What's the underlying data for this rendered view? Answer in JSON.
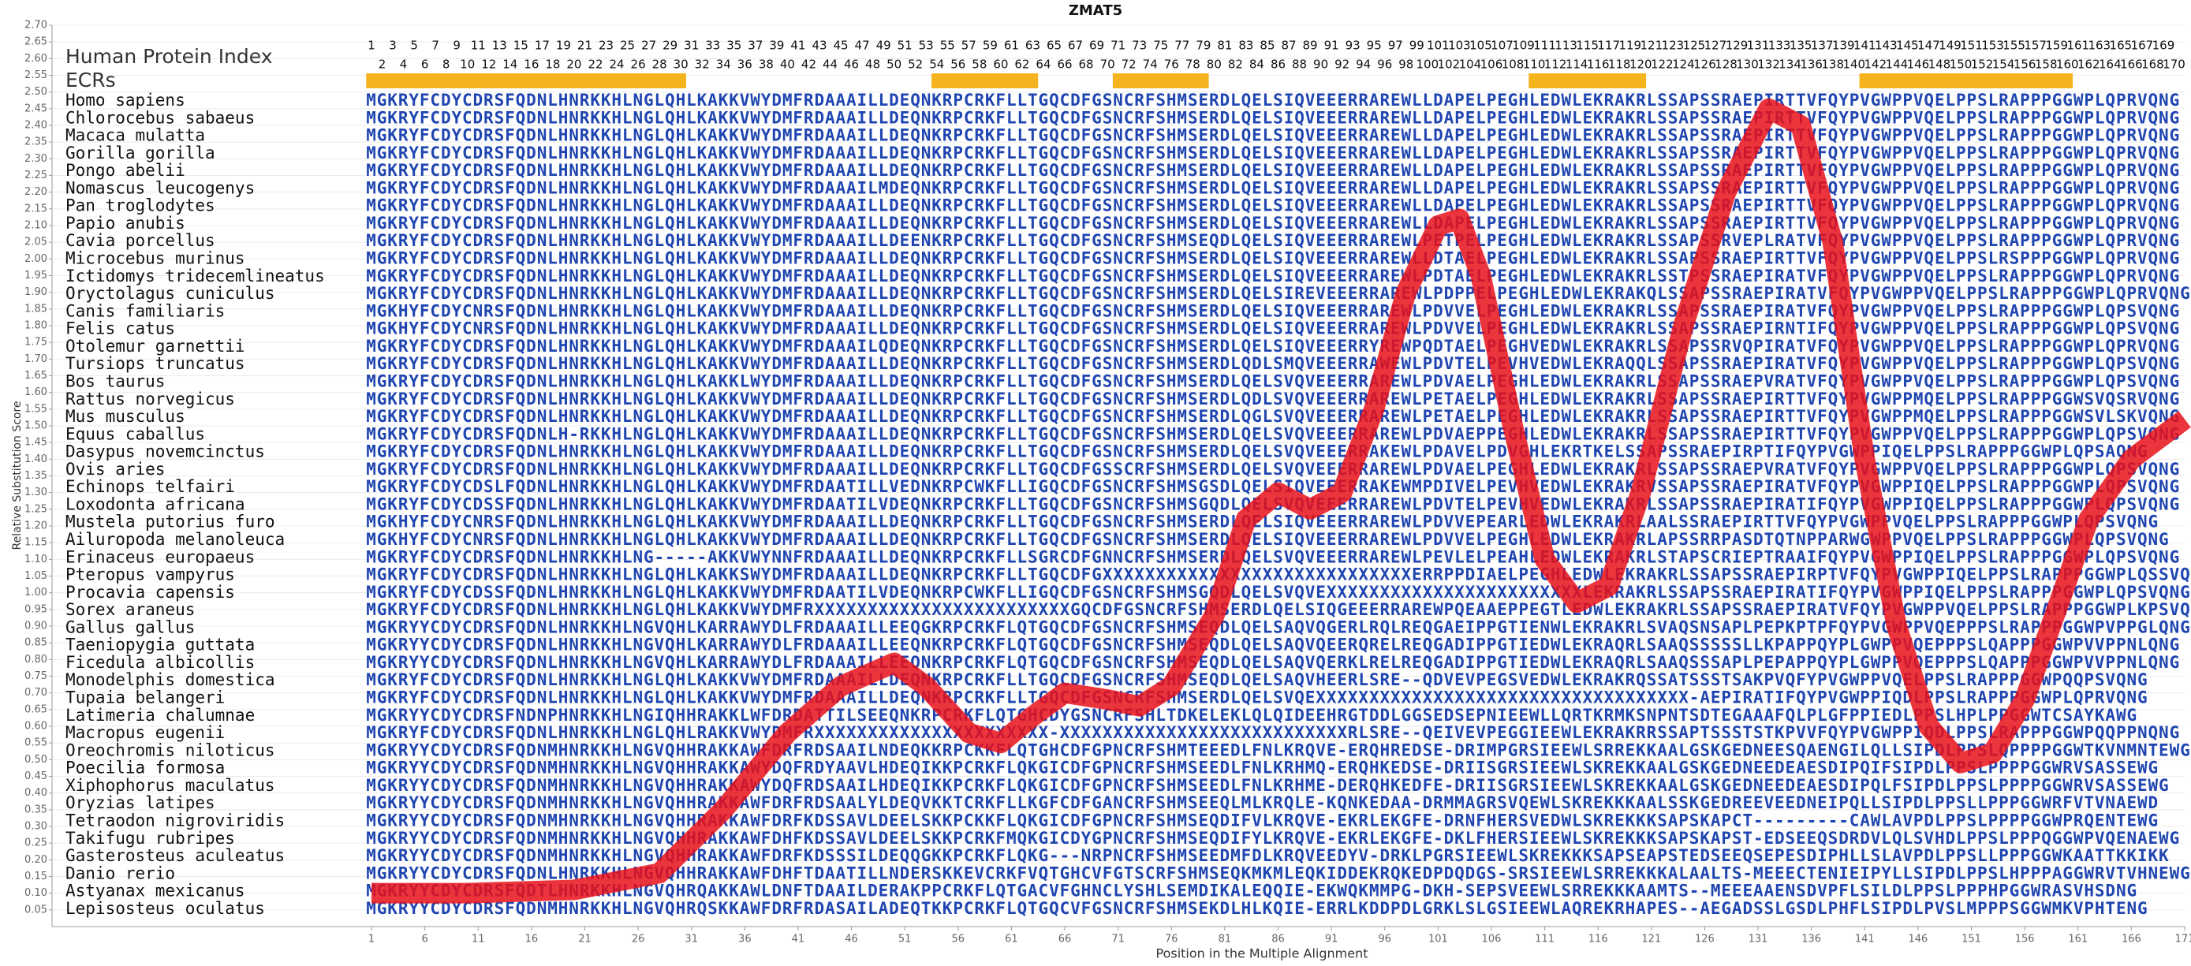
{
  "chart_data": {
    "type": "line",
    "title": "ZMAT5",
    "y_label": "Relative Substitution Score",
    "x_label": "Position in the Multiple Alignment",
    "header_label": "Human Protein Index",
    "ecr_label": "ECRs",
    "ecrs": [
      [
        1,
        30
      ],
      [
        54,
        63
      ],
      [
        71,
        79
      ],
      [
        110,
        120
      ],
      [
        141,
        160
      ]
    ],
    "index_numbers": [
      1,
      2,
      3,
      4,
      5,
      6,
      7,
      8,
      9,
      10,
      11,
      12,
      13,
      14,
      15,
      16,
      17,
      18,
      19,
      20,
      21,
      22,
      23,
      24,
      25,
      26,
      27,
      28,
      29,
      30,
      31,
      32,
      33,
      34,
      35,
      36,
      37,
      38,
      39,
      40,
      41,
      42,
      43,
      44,
      45,
      46,
      47,
      48,
      49,
      50,
      51,
      52,
      53,
      54,
      55,
      56,
      57,
      58,
      59,
      60,
      61,
      62,
      63,
      64,
      65,
      66,
      67,
      68,
      69,
      70,
      71,
      72,
      73,
      74,
      75,
      76,
      77,
      78,
      79,
      80,
      81,
      82,
      83,
      84,
      85,
      86,
      87,
      88,
      89,
      90,
      91,
      92,
      93,
      94,
      95,
      96,
      97,
      98,
      99,
      100,
      101,
      102,
      103,
      104,
      105,
      106,
      107,
      108,
      109,
      110,
      111,
      112,
      113,
      114,
      115,
      116,
      117,
      118,
      119,
      120,
      121,
      122,
      123,
      124,
      125,
      126,
      127,
      128,
      129,
      130,
      131,
      132,
      133,
      134,
      135,
      136,
      137,
      138,
      139,
      140,
      141,
      142,
      143,
      144,
      145,
      146,
      147,
      148,
      149,
      150,
      151,
      152,
      153,
      154,
      155,
      156,
      157,
      158,
      159,
      160,
      161,
      162,
      163,
      164,
      165,
      166,
      167,
      168,
      169,
      170
    ],
    "species": [
      {
        "name": "Homo sapiens",
        "sequence": "MGKRYFCDYCDRSFQDNLHNRKKHLNGLQHLKAKKVWYDMFRDAAAILLDEQNKRPCRKFLLTGQCDFGSNCRFSHMSERDLQELSIQVEEERRAREWLLDAPELPEGHLEDWLEKRAKRLSSAPSSRAEPIRTTVFQYPVGWPPVQELPPSLRAPPPGGWPLQPRVQNG"
      },
      {
        "name": "Chlorocebus sabaeus",
        "sequence": "MGKRYFCDYCDRSFQDNLHNRKKHLNGLQHLKAKKVWYDMFRDAAAILLDEQNKRPCRKFLLTGQCDFGSNCRFSHMSERDLQELSIQVEEERRAREWLLDAPELPEGHLEDWLEKRAKRLSSAPSSRAEPIRTTVFQYPVGWPPVQELPPSLRAPPPGGWPLQPRVQNG"
      },
      {
        "name": "Macaca mulatta",
        "sequence": "MGKRYFCDYCDRSFQDNLHNRKKHLNGLQHLKAKKVWYDMFRDAAAILLDEQNKRPCRKFLLTGQCDFGSNCRFSHMSERDLQELSIQVEEERRAREWLLDAPELPEGHLEDWLEKRAKRLSSAPSSRAEPIRTTVFQYPVGWPPVQELPPSLRAPPPGGWPLQPRVQNG"
      },
      {
        "name": "Gorilla gorilla",
        "sequence": "MGKRYFCDYCDRSFQDNLHNRKKHLNGLQHLKAKKVWYDMFRDAAAILLDEQNKRPCRKFLLTGQCDFGSNCRFSHMSERDLQELSIQVEEERRAREWLLDAPELPEGHLEDWLEKRAKRLSSAPSSRAEPIRTTVFQYPVGWPPVQELPPSLRAPPPGGWPLQPRVQNG"
      },
      {
        "name": "Pongo abelii",
        "sequence": "MGKRYFCDYCDRSFQDNLHNRKKHLNGLQHLKAKKVWYDMFRDAAAILLDEQNKRPCRKFLLTGQCDFGSNCRFSHMSERDLQELSIQVEEERRAREWLLDAPELPEGHLEDWLEKRAKRLSSAPSSRAEPIRTTVFQYPVGWPPVQELPPSLRAPPPGGWPLQPRVQNG"
      },
      {
        "name": "Nomascus leucogenys",
        "sequence": "MGKRYFCDYCDRSFQDNLHNRKKHLNGLQHLKAKKVWYDMFRDAAAILMDEQNKRPCRKFLLTGQCDFGSNCRFSHMSERDLQELSIQVEEERRAREWLLDAPELPEGHLEDWLEKRAKRLSSAPSSRAEPIRTTVFQYPVGWPPVQELPPSLRAPPPGGWPLQPRVQNG"
      },
      {
        "name": "Pan troglodytes",
        "sequence": "MGKRYFCDYCDRSFQDNLHNRKKHLNGLQHLKAKKVWYDMFRDAAAILLDEQNKRPCRKFLLTGQCDFGSNCRFSHMSERDLQELSIQVEEERRAREWLLDAPELPEGHLEDWLEKRAKRLSSAPSSRAEPIRTTVFQYPVGWPPVQELPPSLRAPPPGGWPLQPRVQNG"
      },
      {
        "name": "Papio anubis",
        "sequence": "MGKRYFCDYCDRSFQDNLHNRKKHLNGLQHLKAKKVWYDMFRDAAAILLDEQNKRPCRKFLLTGQCDFGSNCRFSHMSERDLQELSIQVEEERRAREWLLDAPELPEGHLEDWLEKRAKRLSSAPSSRAEPIRTTVFQYPVGWPPVQELPPSLRAPPPGGWPLQPRVQNG"
      },
      {
        "name": "Cavia porcellus",
        "sequence": "MGKRYFCDYCDRSFQDNLHNRKKHLNGLQHLKAKKVWYDMFRDAAAILLDEENKRPCRKFLLTGQCDFGSNCRFSHMSEQDLQELSIQVEEERRAREWLPETPELPEGHLEDWLEKRAKRLSSAPSSRVEPLRATVFQYPVGWPPVQELPPSLRAPPPGGWPLQPRVQNG"
      },
      {
        "name": "Microcebus murinus",
        "sequence": "MGKRYFCDYCDRSFQDNLHNRKKHLNGLQHLKAKKVWYDMFRDAAAILLDEQNKRPCRKFLLTGQCDFGSNCRFSHMSERDLQELSIQVEEERRAREWLLDTAELPEGHLEDWLEKRAKRLSSAPSSRAEPIRTTVFQYPVGWPPVQELPPSLRSPPPGGWPLQPRVQNG"
      },
      {
        "name": "Ictidomys tridecemlineatus",
        "sequence": "MGKRYFCDYCDRSFQDNLHNRKKHLNGLQHLKAKKVWYDMFRDAAAILLDEQNKRPCRKFLLTGQCDFGSNCRFSHMSERDLQELSIQVEEERRAREWLPDTAELPEGHLEDWLEKRAKRLSSTPSSRAEPIRATVFQYPVGWPPVQELPPSLRAPPPGGWPLQPRVQNG"
      },
      {
        "name": "Oryctolagus cuniculus",
        "sequence": "MGKRYFCDYCDRSFQDNLHNRKKHLNGLQHLKAKKVWYDMFRDAAAILLDEQNKRPCRKFLLTGQCDFGSNCRFSHMSERDLQELSIREVEEERRAREWLPDPPELPEGHLEDWLEKRAKQLSSAPSSRAEPIRATVFQYPVGWPPVQELPPSLRAPPPGGWPLQPRVQNG"
      },
      {
        "name": "Canis familiaris",
        "sequence": "MGKHYFCDYCNRSFQDNLHNRKKHLNGLQHLKAKKVWYDMFRDAAAILLDEQNKRPCRKFLLTGQCDFGSNCRFSHMSERDLQELSIQVEEERRAREWLPDVVELPEGHLEDWLEKRAKRLSSAPSSRAEPIRATVFQYPVGWPPVQELPPSLRAPPPGGWPLQPSVQNG"
      },
      {
        "name": "Felis catus",
        "sequence": "MGKHYFCDYCNRSFQDNLHNRKKHLNGLQHLKAKKVWYDMFRDAAAILLDEQNKRPCRKFLLTGQCDFGSNCRFSHMSERDLQELSIQVEEERRAREWLPDVVELPEGHLEDWLEKRAKRLSSAPSSRAEPIRNTIFQYPVGWPPVQELPPSLRAPPPGGWPLQPSVQNG"
      },
      {
        "name": "Otolemur garnettii",
        "sequence": "MGKRYFCDYCDRSFQDNLHNRKKHLNGLQHLKAKKVWYDMFRDAAAILQDEQNKRPCRKFLLTGQCDFGSNCRFSHMSERDLQELSIQVEEERRYREWPQDTAELPEGHVEDWLEKRAKRLSSAPSSRVQPIRATVFQYPVGWPPVQELPPSLRAPPPGGWPLQPRVQNG"
      },
      {
        "name": "Tursiops truncatus",
        "sequence": "MGKRYFCDYCDRSFQDNLHNRKKHLNGLQHLKAKKVWYDMFRDAAAILLDEQNKRPCRKFLLTGQCDFGSNCRFSHMSERDLQDLSMQVEEERRAWEWLPDVTELPEVHVEDWLEKRAQQLSSAPSSRAEPIRATVFQYPVGWPPVQELPPSLRAPPPGGWPLQPSVQNG"
      },
      {
        "name": "Bos taurus",
        "sequence": "MGKRYFCDYCDRSFQDNLHNRKKHLNGLQHLKAKKLWYDMFRDAAAILLDEQNKRPCRKFLLTGQCDFGSNCRFSHMSERDLQELSVQVEEERRAREWLPDVAELPEGHLEDWLEKRAKRLSSAPSSRAEPVRATVFQYPVGWPPVQELPPSLRAPPPGGWPLQPSVQNG"
      },
      {
        "name": "Rattus norvegicus",
        "sequence": "MGKRYFCDYCDRSFQDNLHNRKKHLNGLQHLKAKKVWYDMFRDAAAILLDEQNKRPCRKFLLTGQCDFGSNCRFSHMSERDLQDLSVQVEEERRAREWLPETAELPEGHLEDWLEKRAKRLSSAPSSRAEPIRTTVFQYPVGWPPMQELPPSLRAPPPGGWSVQSRVQNG"
      },
      {
        "name": "Mus musculus",
        "sequence": "MGKRYFCDYCDRSFQDNLHNRKKHLNGLQHLKAKKVWYDMFRDAAAILLDEQNKRPCRKFLLTGQCDFGSNCRFSHMSERDLQGLSVQVEEERRAREWLPETAELPEGHLEDWLEKRAKRLSSAPSSRAEPIRTTVFQYPVGWPPMQELPPSLRAPPPGGWSVLSKVQNG"
      },
      {
        "name": "Equus caballus",
        "sequence": "MGKRYFCDYCDRSFQDNLH-RKKHLNGLQHLKAKKVWYDMFRDAAAILLDEQNKRPCRKFLLTGQCDFGSNCRFSHMSERDLQELSVQVEEERRAREWLPDVAEPPEGHLEDWLEKRAKRLSSAPSSRAEPIRTTVFQYPVGWPPVQELPPSLRAPPPGGWPLQPSVQNG"
      },
      {
        "name": "Dasypus novemcinctus",
        "sequence": "MGKRYFCDYCDRSFQDNLHNRKKHLNGLQHLKAKKVWYDMFRDAAAILLDEQNKRPCRKFLLTGQCDFGSNCRFSHMSERDLQELSVQVEEERRAKEWLPDAVELPDVGHLEKRTKELSSAPSSRAEPIRPTIFQYPVGWPPIQELPPSLRAPPPGGWPLQPSAQNG"
      },
      {
        "name": "Ovis aries",
        "sequence": "MGKRYFCDYCDRSFQDNLHNRKKHLNGLQHLKAKKVWYDMFRDAAAILLDEQNKRPCRKFLLTGQCDFGSSCRFSHMSERDLQELSVQVEEERRAREWLPDVAELPEGHLEDWLEKRAKRLSSAPSSRAEPVRATVFQYPVGWPPVQELPPSLRAPPPGGWPLQPSVQNG"
      },
      {
        "name": "Echinops telfairi",
        "sequence": "MGKRYFCDYCDSLFQDNLHNRKKHLNGLQHLKAKKVWYDMFRDAATILLVEDNKRPCWKFLLIGQCDFGSNCRFSHMSGSDLQELSIQVEEERRAKEWMPDIVELPEVHVEDWLEKRAKRVSSAPSSRAEPIRATVFQYPVGWPPIQELPPSLRAPPPGGWPLQPSVQNG"
      },
      {
        "name": "Loxodonta africana",
        "sequence": "MGKRYFCDYCDSSFQDNLHNRKKHLNGLQHLKAKKVWYDMFRDAATILVDEQNKRPCRKFLLTGQCDFGSNCRFSHMSGQDLQELSVQVEEERRAREWLPDVTELPEVHVEDWLEKRAKRLSSAPSSRAEPIRATIFQYPVGWPPIQELPPSLRAPPPGGWPLQPSVQNG"
      },
      {
        "name": "Mustela putorius furo",
        "sequence": "MGKHYFCDYCNRSFQDNLHNRKKHLNGLQHLKAKKVWYDMFRDAAAILLDEQNKRPCRKFLLTGQCDFGSNCRFSHMSERDLQELSIQVEEERRAREWLPDVVEPEARLEDWLEKRAKRLAALSSRAEPIRTTVFQYPVGWPPVQELPPSLRAPPPGGWPLQPSVQNG"
      },
      {
        "name": "Ailuropoda melanoleuca",
        "sequence": "MGKHYFCDYCNRSFQDNLHNRKKHLNGLQHLKAKKVWYDMFRDAAAILLDEQNKRPCRKFLLTGQCDFGSNCRFSHMSERDLQELSIQVEEERRAREWLPDVVELPEGHLEDWLEKRAKRLAPSSRRPASDTQTNPPARWGWPPVQELPPSLRAPPPGGWPLQPSVQNG"
      },
      {
        "name": "Erinaceus europaeus",
        "sequence": "MGKRYFCDYCDRSFQDNLHNRKKHLNG-----AKKVWYNNFRDAAAILLDEQNKRPCRKFLLSGRCDFGNNCRFSHMSERDLQELSVQVEEERRAREWLPEVLELPEAHLEDWLEKRAKRLSTAPSCRIEPTRAAIFQYPVGWPPIQELPPSLRAPPPGGWPLQPSVQNG"
      },
      {
        "name": "Pteropus vampyrus",
        "sequence": "MGKRYFCDYCDRSFQDNLHNRKKHLNGLQHLKAKKSWYDMFRDAAAILLDEQNKRPCRKFLLTGQCDFGXXXXXXXXXXXXXXXXXXXXXXXXXXXXXERRPPDIAELPEGHLEDWLEKRAKRLSSAPSSRAEPIRPTVFQYPVGWPPIQELPPSLRAPPPGGWPLQSSVQNG"
      },
      {
        "name": "Procavia capensis",
        "sequence": "MGKRYFCDYCDSSFQDNLHNRKKHLNGLQHLKAKKVWYDMFRDAATILVDEQNKRPCWKFLLIGQCDFGSNCRFSHMSGQDLQELSVQVEXXXXXXXXXXXXXXXXXXXXXXXXLEKRAKRLSSAPSSRAEPIRATIFQYPVGWPPIQELPPSLRAPPPGGWPLQPSVQNG"
      },
      {
        "name": "Sorex araneus",
        "sequence": "MGKRYFCDYCDRSFQDNLHNRKKHLNGLQHLKAKKVWYDMFRXXXXXXXXXXXXXXXXXXXXXXXXGQCDFGSNCRFSHMSERDLQELSIQGEEERRAREWPQEAAEPPEGTLEDWLEKRAKRLSSAPSSRAEPIRATVFQYPVGWPPVQELPPSLRAPPPGGWPLKPSVQNG"
      },
      {
        "name": "Gallus gallus",
        "sequence": "MGKRYYCDYCDRSFQDNLHNRKKHLNGVQHLKARRAWYDLFRDAAAILLEEQGKRPCRKFLQTGQCDFGSNCRFSHMSEQDLQELSAQVQGERLRQLREQGAEIPPGTIENWLEKRAKRLSVAQSNSAPLPEPKPTPFQYPVGWPPVQEPPPSLRAPPPGGWPVPPGLQNG"
      },
      {
        "name": "Taeniopygia guttata",
        "sequence": "MGKRYYCDYCDRSFQDNLHNRKKHLNGVQHLKARRAWYDLFRDAAAILLEEQNKRPCRKFLQTGQCDFGSNCRFSHMSEQDLQELSAQVQEERQRELREQGADIPPGTIEDWLEKRAQRLSAAQSSSSSLLKPAPPQYPLGWPPVQEPPPSLQAPPPGGWPVVPPNLQNG"
      },
      {
        "name": "Ficedula albicollis",
        "sequence": "MGKRYYCDYCDRSFQDNLHNRKKHLNGVQHLKARRAWYDLFRDAAAILLEEQNKRPCRKFLQTGQCDFGSNCRFSHMSEQDLQELSAQVQERKLRELREQGADIPPGTIEDWLEKRAQRLSAAQSSSAPLPEPAPPQYPLGWPPVQEPPPSLQAPPPGGWPVVPPNLQNG"
      },
      {
        "name": "Monodelphis domestica",
        "sequence": "MGKRYFCDYCDRSFQDNLHNRKKHLNGLQHLKAKKVWYDMFRDAAAILLDEQNKRPCRKFLLTGQCDFGSNCRFSHMSEQDLQELSAQVHEERLSRE--QDVEVPEGSVEDWLEKRAKRQSSATSSSTSAKPVQFYPVGWPPVQELPPSLRAPPPGGWPQQPSVQNG"
      },
      {
        "name": "Tupaia belangeri",
        "sequence": "MGKRYFCDYCDRSFQDNLHNRKKHLNGLQHLKAKKVWYDMFRDAAAILLDEQNKRPCRKFLLTGQCDFGSNCRFSHMSERDLQELSVQEXXXXXXXXXXXXXXXXXXXXXXXXXXXXXXXXXXX-AEPIRATIFQYPVGWPPIQDLPPSLRAPPPGGWPLQPRVQNG"
      },
      {
        "name": "Latimeria chalumnae",
        "sequence": "MGKRYYCDYCDRSFNDNPHNRKKHLNGIQHHRAKKLWFDRDATTILSEEQNKRPCRKFLQTGHCDYGSNCRFSHLTDKELEKLQLQIDEEHRGTDDLGGSEDSEPNIEEWLLQRTKRMKSNPNTSDTEGAAAFQLPLGFPPIEDLPPSLHPLPPGGWTCSAYKAWG"
      },
      {
        "name": "Macropus eugenii",
        "sequence": "MGKRYFCDYCDRSFQDNLHNRKKHLNGLQHLRAKKVWYDMFRXXXXXXXXXXXXXXXXXXXXXX-XXXXXXXXXXXXXXXXXXXXXXXXXXXRLSRE--QEIVEVPEGGIEEWLEKRAKRRSSAPTSSSTSTKPVVFQYPVGWPPIQDLPPSLRAPPPGGWPQQPPNQNG"
      },
      {
        "name": "Oreochromis niloticus",
        "sequence": "MGKRYYCDYCDRSFQDNMHNRKKHLNGVQHHRAKKAWFDRFRDSAAILNDEQKKRPCKKFLQTGHCDFGPNCRFSHMTEEEDLFNLKRQVE-ERQHREDSE-DRIMPGRSIEEWLSRREKKAALGSKGEDNEESQAENGILQLLSIPDLPPSLQPPPPGGWTKVNMNTEWG"
      },
      {
        "name": "Poecilia formosa",
        "sequence": "MGKRYYCDYCDRSFQDNMHNRKKHLNGVQHHRAKKAWYDQFRDYAAVLHDEQIKKPCRKFLQKGICDFGPNCRFSHMSEEDLFNLKRHMQ-ERQHKEDSE-DRIISGRSIEEWLSKREKKAALGSKGEDNEEDEAESDIPQIFSIPDLPPSLPPPPGGWRVSASSEWG"
      },
      {
        "name": "Xiphophorus maculatus",
        "sequence": "MGKRYYCDYCDRSFQDNMHNRKKHLNGVQHHRAKKAWYDQFRDSAAILHDEQIKKPCRKFLQKGICDFGPNCRFSHMSEEDLFNLKRHME-DERQHKEDFE-DRIISGRSIEEWLSKREKKAALGSKGEDNEEDEAESDIPQLFSIPDLPPSLPPPPGGWRVSASSEWG"
      },
      {
        "name": "Oryzias latipes",
        "sequence": "MGKRYYCDYCDRSFQDNMHNRKKHLNGVQHHRAKKAWFDRFRDSAALYLDEQVKKTCRKFLLKGFCDFGANCRFSHMSEEQLMLKRQLE-KQNKEDAA-DRMMAGRSVQEWLSKREKKKAALSSKGEDREEVEEDNEIPQLLSIPDLPPSLLPPPGGWRFVTVNAEWD"
      },
      {
        "name": "Tetraodon nigroviridis",
        "sequence": "MGKRYYCDYCDRSFQDNMHNRKKHLNGVQHHRAKKAWFDRFKDSSAVLDEELSKKPCKKFLQKGICDFGPNCRFSHMSEQDIFVLKRQVE-EKRLEKGFE-DRNFHERSVEDWLSKREKKKSAPSKAPCT---------CAWLAVPDLPPSLPPPPGGWPRQENTEWG"
      },
      {
        "name": "Takifugu rubripes",
        "sequence": "MGKRYYCDYCDRSFQDNMHNRKKHLNGVQHHRAKKAWFDHFKDSSAVLDEELSKKPCRKFMQKGICDYGPNCRFSHMSEQDIFYLKRQVE-EKRLEKGFE-DKLFHERSIEEWLSKREKKKSAPSKAPST-EDSEEQSDRDVLQLSVHDLPPSLPPPQGGWPVQENAEWG"
      },
      {
        "name": "Gasterosteus aculeatus",
        "sequence": "MGKRYYCDYCDRSFQDNMHNRKKHLNGVQHHRAKKAWFDRFKDSSSILDEQQGKKPCRKFLQKG---NRPNCRFSHMSEEDMFDLKRQVEEDYV-DRKLPGRSIEEWLSKREKKKSAPSEAPSTEDSEEQSEPESDIPHLLSLAVPDLPPSLLPPPGGWKAATTKKIKK"
      },
      {
        "name": "Danio rerio",
        "sequence": "MGKRYYCDYCDRSFQDNLHNRKKHLNGVQHHRAKKAWFDHFTDAATILLNDERSKKEVCRKFVQTGHCVFGTSCRFSHMSEQKMKMLEQKIDDEKRQKEDPDQDGS-SRSIEEWLSRREKKKALAALTS-MEEECTENIEIPYLLSIPDLPPSLHPPPAGGWRVTVHNEWG"
      },
      {
        "name": "Astyanax mexicanus",
        "sequence": "MGKRYYCDYCDRSFQDTLHNRKKHLNGVQHRQAKKAWLDNFTDAAILDERAKPPCRKFLQTGACVFGHNCLYSHLSEMDIKALEQQIE-EKWQKMMPG-DKH-SEPSVEEWLSRREKKKAAMTS--MEEEAAENSDVPFLSILDLPPSLPPPHPGGWRASVHSDNG"
      },
      {
        "name": "Lepisosteus oculatus",
        "sequence": "MGKRYYCDYCDRSFQDNMHNRKKHLNGVQHRQSKKAWFDRFRDASAILADEQTKKPCRKFLQTGQCVFGSNCRFSHMSEKDLHLKQIE-ERRLKDDPDLGRKLSLGSIEEWLAQREKRHAPES--AEGADSSLGSDLPHFLSIPDLPVSLMPPPSGGWMKVPHTENG"
      }
    ],
    "x": [
      1,
      10,
      20,
      28,
      34,
      40,
      45,
      50,
      53,
      57,
      60,
      63,
      66,
      70,
      73,
      76,
      80,
      83,
      86,
      89,
      92,
      95,
      98,
      101,
      103,
      105,
      108,
      111,
      114,
      117,
      120,
      124,
      128,
      132,
      135,
      138,
      141,
      144,
      147,
      150,
      153,
      156,
      159,
      162,
      166,
      171
    ],
    "values": [
      0.1,
      0.1,
      0.11,
      0.16,
      0.35,
      0.58,
      0.72,
      0.79,
      0.72,
      0.58,
      0.55,
      0.63,
      0.7,
      0.68,
      0.66,
      0.72,
      0.93,
      1.22,
      1.3,
      1.25,
      1.3,
      1.55,
      1.9,
      2.1,
      2.12,
      1.95,
      1.5,
      1.1,
      0.97,
      1.02,
      1.3,
      1.8,
      2.2,
      2.45,
      2.4,
      2.05,
      1.4,
      0.9,
      0.6,
      0.49,
      0.52,
      0.68,
      0.95,
      1.22,
      1.4,
      1.52
    ],
    "color": "#e8101a",
    "ecr_color": "#f5b41e",
    "sequence_color": "#1f45b0",
    "xlim": [
      1,
      171
    ],
    "xticks": [
      1,
      6,
      11,
      16,
      21,
      26,
      31,
      36,
      41,
      46,
      51,
      56,
      61,
      66,
      71,
      76,
      81,
      86,
      91,
      96,
      101,
      106,
      111,
      116,
      121,
      126,
      131,
      136,
      141,
      146,
      151,
      156,
      161,
      166,
      171
    ],
    "ylim": [
      0,
      2.7
    ],
    "yticks": [
      0.05,
      {
        "value": 0.1,
        "label": "0.10"
      },
      0.15,
      {
        "value": 0.2,
        "label": "0.20"
      },
      0.25,
      {
        "value": 0.3,
        "label": "0.30"
      },
      0.35,
      {
        "value": 0.4,
        "label": "0.40"
      },
      0.45,
      {
        "value": 0.5,
        "label": "0.50"
      },
      0.55,
      {
        "value": 0.6,
        "label": "0.60"
      },
      0.65,
      {
        "value": 0.7,
        "label": "0.70"
      },
      0.75,
      {
        "value": 0.8,
        "label": "0.80"
      },
      0.85,
      {
        "value": 0.9,
        "label": "0.90"
      },
      0.95,
      {
        "value": 1,
        "label": "1.00"
      },
      1.05,
      {
        "value": 1.1,
        "label": "1.10"
      },
      1.15,
      {
        "value": 1.2,
        "label": "1.20"
      },
      1.25,
      {
        "value": 1.3,
        "label": "1.30"
      },
      1.35,
      {
        "value": 1.4,
        "label": "1.40"
      },
      1.45,
      {
        "value": 1.5,
        "label": "1.50"
      },
      1.55,
      {
        "value": 1.6,
        "label": "1.60"
      },
      1.65,
      {
        "value": 1.7,
        "label": "1.70"
      },
      1.75,
      {
        "value": 1.8,
        "label": "1.80"
      },
      1.85,
      {
        "value": 1.9,
        "label": "1.90"
      },
      1.95,
      {
        "value": 2,
        "label": "2.00"
      },
      2.05,
      {
        "value": 2.1,
        "label": "2.10"
      },
      2.15,
      {
        "value": 2.2,
        "label": "2.20"
      },
      2.25,
      {
        "value": 2.3,
        "label": "2.30"
      },
      2.35,
      {
        "value": 2.4,
        "label": "2.40"
      },
      2.45,
      {
        "value": 2.5,
        "label": "2.50"
      },
      2.55,
      {
        "value": 2.6,
        "label": "2.60"
      },
      2.65,
      {
        "value": 2.7,
        "label": "2.70"
      }
    ],
    "grid": true
  }
}
